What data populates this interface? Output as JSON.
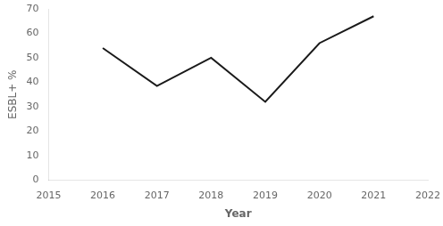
{
  "chart_data": {
    "type": "line",
    "x": [
      2016,
      2017,
      2018,
      2019,
      2020,
      2021
    ],
    "values": [
      54,
      38.5,
      50,
      32,
      56,
      67
    ],
    "color": "#1a1a1a",
    "xlim": [
      2015,
      2022
    ],
    "ylim": [
      0,
      70
    ],
    "xticks": [
      2015,
      2016,
      2017,
      2018,
      2019,
      2020,
      2021,
      2022
    ],
    "yticks": [
      0,
      10,
      20,
      30,
      40,
      50,
      60,
      70
    ],
    "xlabel": "Year",
    "ylabel": "ESBL+ %",
    "grid": false
  }
}
